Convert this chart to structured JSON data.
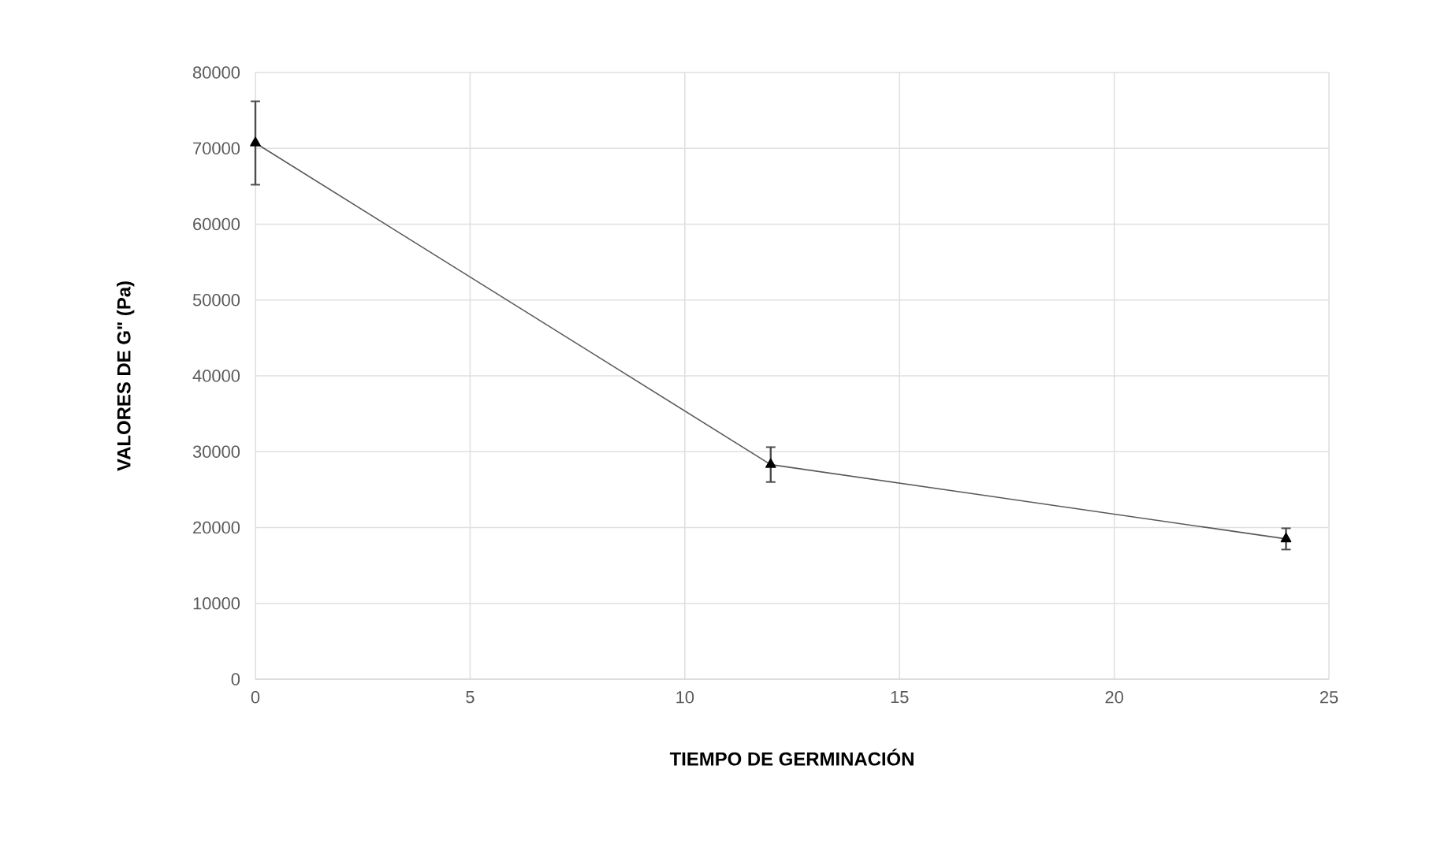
{
  "chart_data": {
    "type": "line",
    "xlabel": "TIEMPO DE GERMINACIÓN",
    "ylabel": "VALORES  DE G\" (Pa)",
    "x": [
      0,
      12,
      24
    ],
    "series": [
      {
        "color": "#595959",
        "values": [
          70700,
          28300,
          18500
        ],
        "errors": [
          5500,
          2300,
          1400
        ]
      }
    ],
    "xlim": [
      0,
      25
    ],
    "xticks": [
      0,
      5,
      10,
      15,
      20,
      25
    ],
    "ylim": [
      0,
      80000
    ],
    "yticks": [
      0,
      10000,
      20000,
      30000,
      40000,
      50000,
      60000,
      70000,
      80000
    ],
    "grid": true,
    "marker": "triangle",
    "line_style": "solid"
  }
}
